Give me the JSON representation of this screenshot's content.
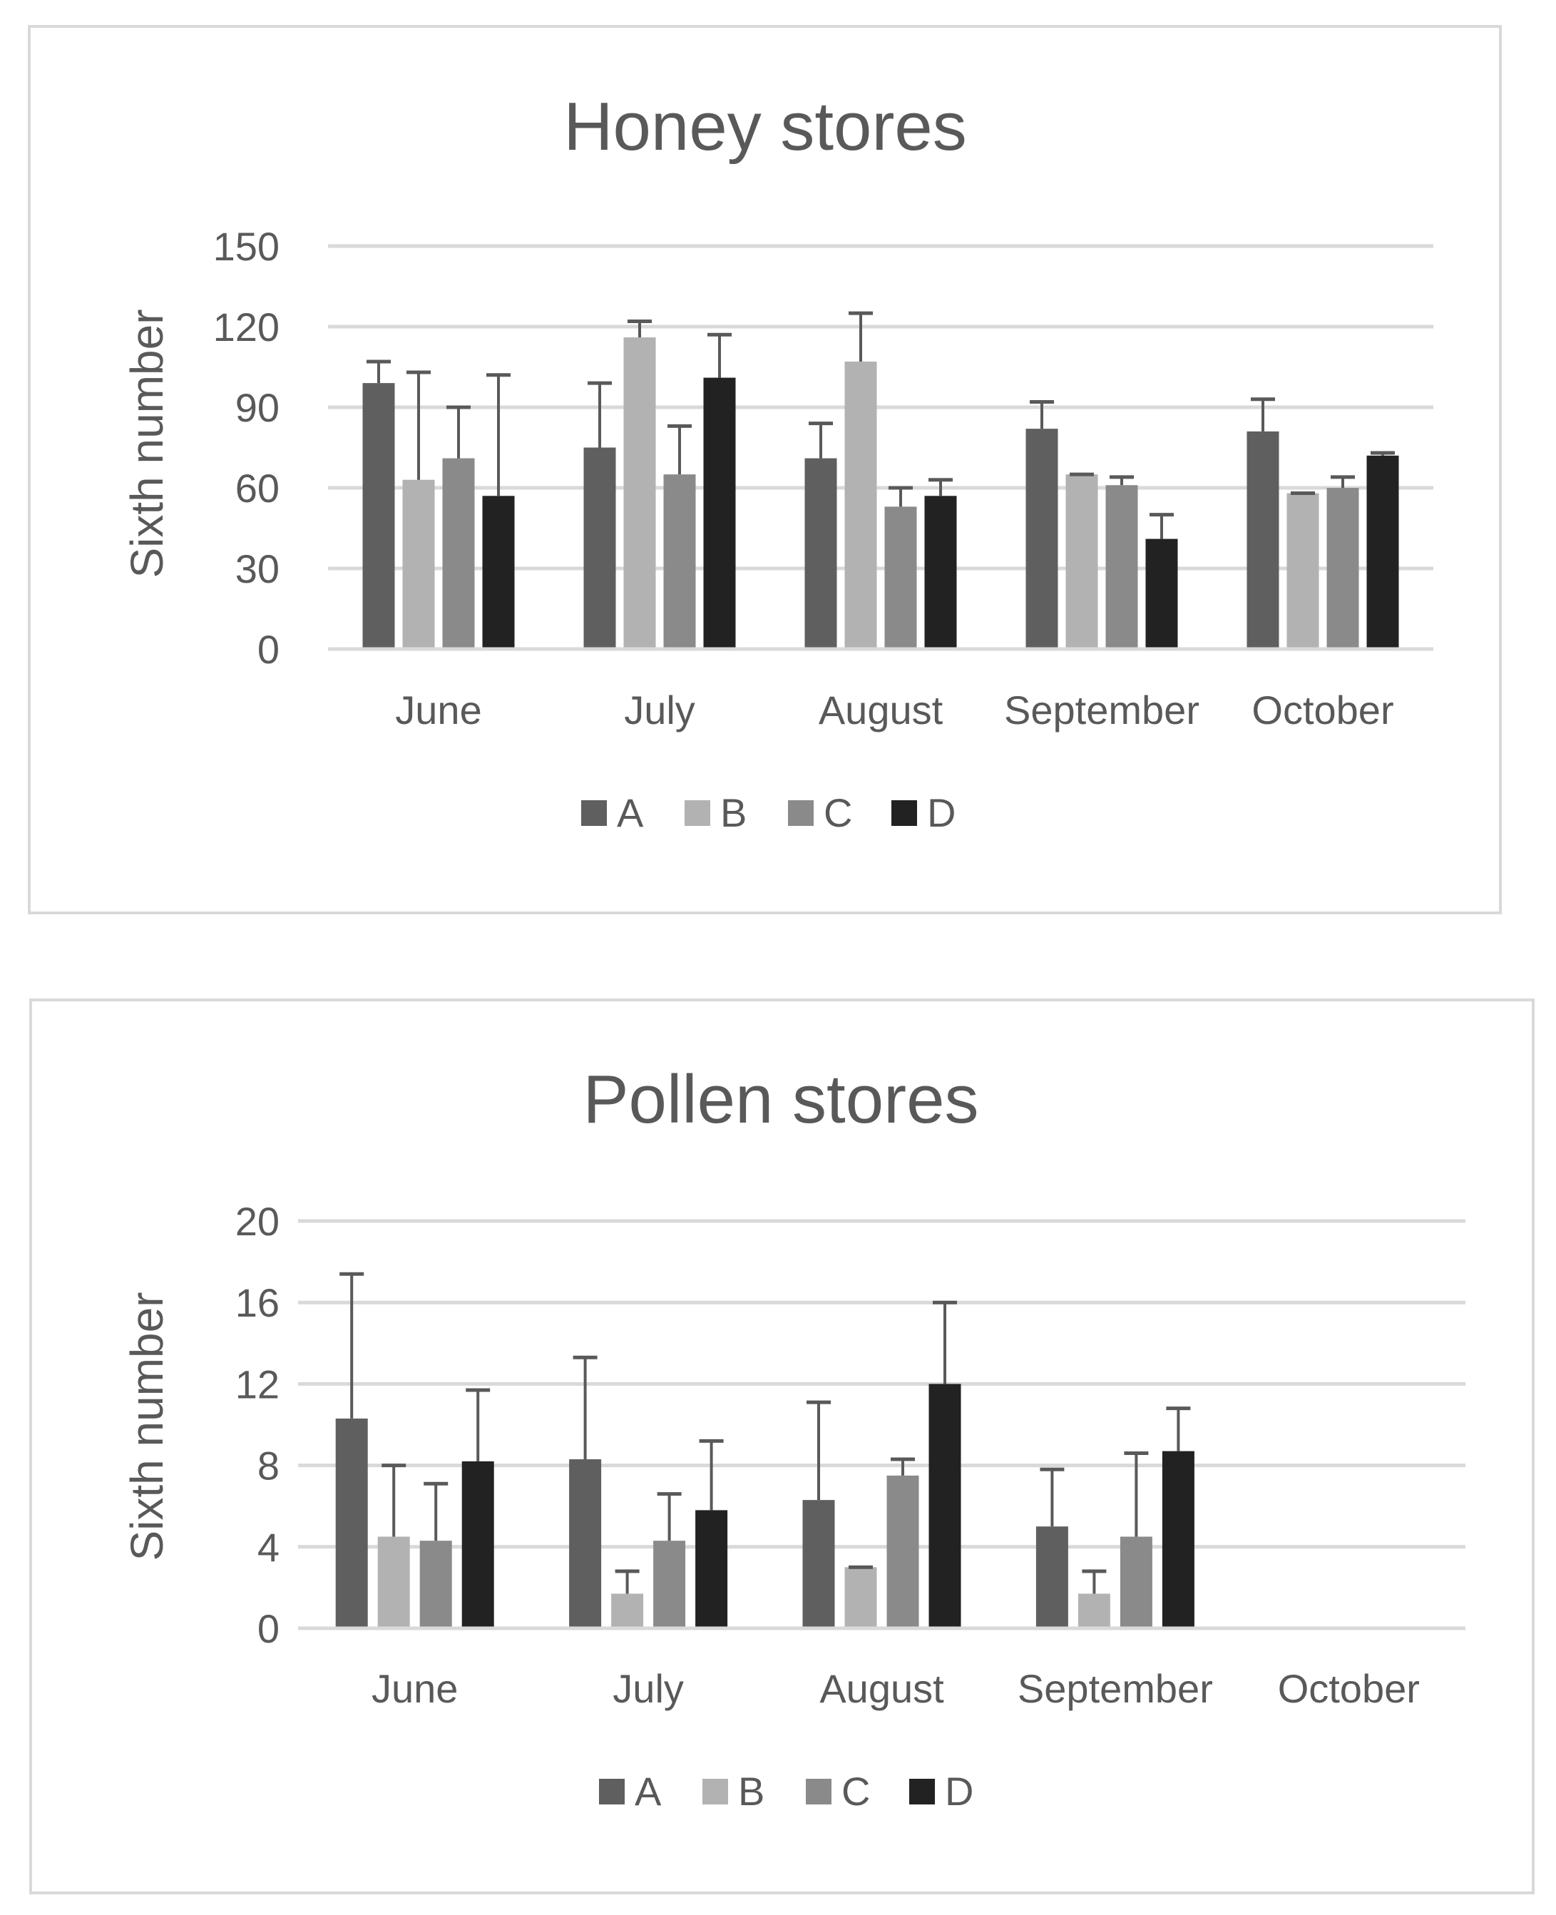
{
  "series_colors": [
    "#5f5f5f",
    "#b2b2b2",
    "#8a8a8a",
    "#222222"
  ],
  "chart_data": [
    {
      "type": "bar",
      "title": "Honey stores",
      "xlabel": "",
      "ylabel": "Sixth number",
      "ylim": [
        0,
        150
      ],
      "yticks": [
        "0",
        "30",
        "60",
        "90",
        "120",
        "150"
      ],
      "categories": [
        "June",
        "July",
        "August",
        "September",
        "October"
      ],
      "grid": true,
      "legend": "bottom",
      "series": [
        {
          "name": "A",
          "values": [
            99,
            75,
            71,
            82,
            81
          ],
          "errors": [
            8,
            24,
            13,
            10,
            12
          ]
        },
        {
          "name": "B",
          "values": [
            63,
            116,
            107,
            65,
            58
          ],
          "errors": [
            40,
            6,
            18,
            0,
            0
          ]
        },
        {
          "name": "C",
          "values": [
            71,
            65,
            53,
            61,
            60
          ],
          "errors": [
            19,
            18,
            7,
            3,
            4
          ]
        },
        {
          "name": "D",
          "values": [
            57,
            101,
            57,
            41,
            72
          ],
          "errors": [
            45,
            16,
            6,
            9,
            1
          ]
        }
      ]
    },
    {
      "type": "bar",
      "title": "Pollen stores",
      "xlabel": "",
      "ylabel": "Sixth number",
      "ylim": [
        0,
        20
      ],
      "yticks": [
        "0",
        "4",
        "8",
        "12",
        "16",
        "20"
      ],
      "categories": [
        "June",
        "July",
        "August",
        "September",
        "October"
      ],
      "grid": true,
      "legend": "bottom",
      "series": [
        {
          "name": "A",
          "values": [
            10.3,
            8.3,
            6.3,
            5.0,
            null
          ],
          "errors": [
            7.1,
            5.0,
            4.8,
            2.8,
            null
          ]
        },
        {
          "name": "B",
          "values": [
            4.5,
            1.7,
            3.0,
            1.7,
            null
          ],
          "errors": [
            3.5,
            1.1,
            0,
            1.1,
            null
          ]
        },
        {
          "name": "C",
          "values": [
            4.3,
            4.3,
            7.5,
            4.5,
            null
          ],
          "errors": [
            2.8,
            2.3,
            0.8,
            4.1,
            null
          ]
        },
        {
          "name": "D",
          "values": [
            8.2,
            5.8,
            12.0,
            8.7,
            null
          ],
          "errors": [
            3.5,
            3.4,
            4.0,
            2.1,
            null
          ]
        }
      ]
    }
  ]
}
